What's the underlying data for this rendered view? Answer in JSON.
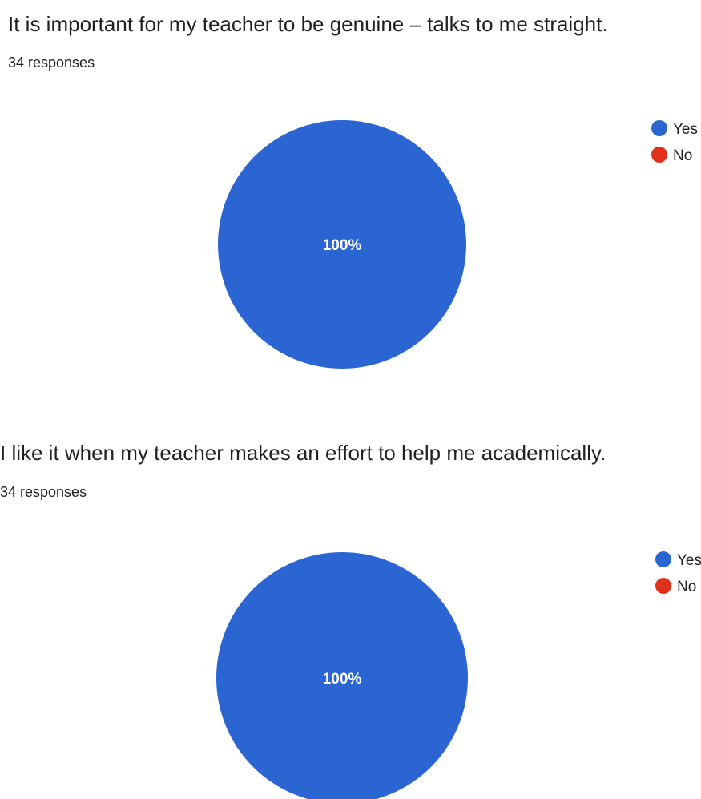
{
  "questions": [
    {
      "title": "It is important for my teacher to be genuine – talks to me straight.",
      "responses": "34 responses"
    },
    {
      "title": "I like it when my teacher makes an effort to help me academically.",
      "responses": "34 responses"
    }
  ],
  "colors": {
    "yes": "#2a65d1",
    "no": "#e0321b"
  },
  "chart_data": [
    {
      "type": "pie",
      "title": "It is important for my teacher to be genuine – talks to me straight.",
      "categories": [
        "Yes",
        "No"
      ],
      "values": [
        100,
        0
      ],
      "slice_labels": [
        "100%",
        ""
      ],
      "legend": [
        "Yes",
        "No"
      ],
      "legend_position": "right"
    },
    {
      "type": "pie",
      "title": "I like it when my teacher makes an effort to help me academically.",
      "categories": [
        "Yes",
        "No"
      ],
      "values": [
        100,
        0
      ],
      "slice_labels": [
        "100%",
        ""
      ],
      "legend": [
        "Yes",
        "No"
      ],
      "legend_position": "right"
    }
  ]
}
